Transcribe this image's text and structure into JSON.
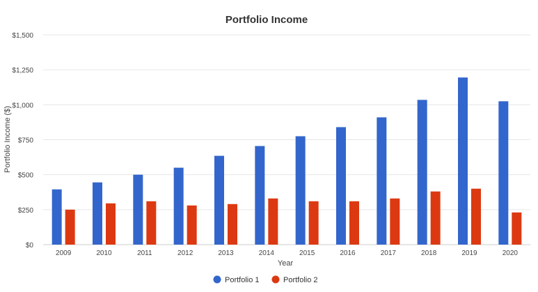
{
  "chart_data": {
    "type": "bar",
    "title": "Portfolio Income",
    "xlabel": "Year",
    "ylabel": "Portfolio Income ($)",
    "categories": [
      "2009",
      "2010",
      "2011",
      "2012",
      "2013",
      "2014",
      "2015",
      "2016",
      "2017",
      "2018",
      "2019",
      "2020"
    ],
    "series": [
      {
        "name": "Portfolio 1",
        "color": "#3366cc",
        "values": [
          395,
          445,
          500,
          550,
          635,
          705,
          775,
          840,
          910,
          1035,
          1195,
          1025
        ]
      },
      {
        "name": "Portfolio 2",
        "color": "#dc3912",
        "values": [
          250,
          295,
          310,
          280,
          290,
          330,
          310,
          310,
          330,
          380,
          400,
          230
        ]
      }
    ],
    "ylim": [
      0,
      1500
    ],
    "yticks": [
      0,
      250,
      500,
      750,
      1000,
      1250,
      1500
    ],
    "ytick_labels": [
      "$0",
      "$250",
      "$500",
      "$750",
      "$1,000",
      "$1,250",
      "$1,500"
    ],
    "grid": true,
    "legend_position": "bottom"
  }
}
